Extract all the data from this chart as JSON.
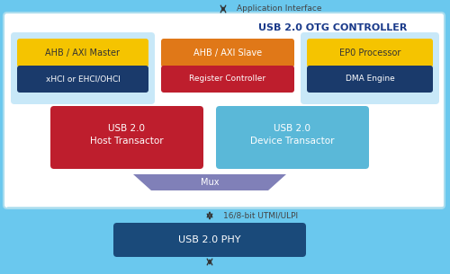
{
  "title": "USB 2.0 OTG CONTROLLER",
  "bg_outer": "#6ac8ee",
  "bg_inner": "#ffffff",
  "colors": {
    "yellow": "#f5c400",
    "orange": "#e07818",
    "navy": "#1a3a6b",
    "red": "#be1e2d",
    "light_blue_box": "#5ab8d8",
    "mux": "#8080b8",
    "phy": "#1a4a7a",
    "left_panel": "#c8e8f8",
    "right_panel": "#c8e8f8"
  },
  "app_interface_label": "Application Interface",
  "utmi_label": "16/8-bit UTMI/ULPI"
}
